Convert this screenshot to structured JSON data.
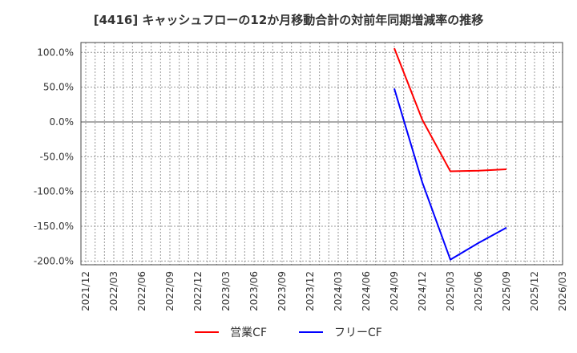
{
  "chart_data": {
    "type": "line",
    "title": "[4416]  キャッシュフローの12か月移動合計の対前年同期増減率の推移",
    "xlabel": "",
    "ylabel": "",
    "ylim": [
      -200,
      100
    ],
    "y_ticks": [
      "100.0%",
      "50.0%",
      "0.0%",
      "-50.0%",
      "-100.0%",
      "-150.0%",
      "-200.0%"
    ],
    "y_tick_values": [
      100,
      50,
      0,
      -50,
      -100,
      -150,
      -200
    ],
    "x_ticks": [
      "2021/12",
      "2022/03",
      "2022/06",
      "2022/09",
      "2022/12",
      "2023/03",
      "2023/06",
      "2023/09",
      "2023/12",
      "2024/03",
      "2024/06",
      "2024/09",
      "2024/12",
      "2025/03",
      "2025/06",
      "2025/09",
      "2025/12",
      "2026/03"
    ],
    "categories": [
      "2024/09",
      "2024/12",
      "2025/03",
      "2025/06",
      "2025/09"
    ],
    "series": [
      {
        "name": "営業CF",
        "color": "#ff0000",
        "values": [
          106.0,
          3.0,
          -71.0,
          -70.0,
          -68.0
        ]
      },
      {
        "name": "フリーCF",
        "color": "#0000ff",
        "values": [
          48.0,
          -87.0,
          -198.0,
          -174.0,
          -152.0
        ]
      }
    ],
    "grid": true,
    "legend_position": "bottom"
  }
}
